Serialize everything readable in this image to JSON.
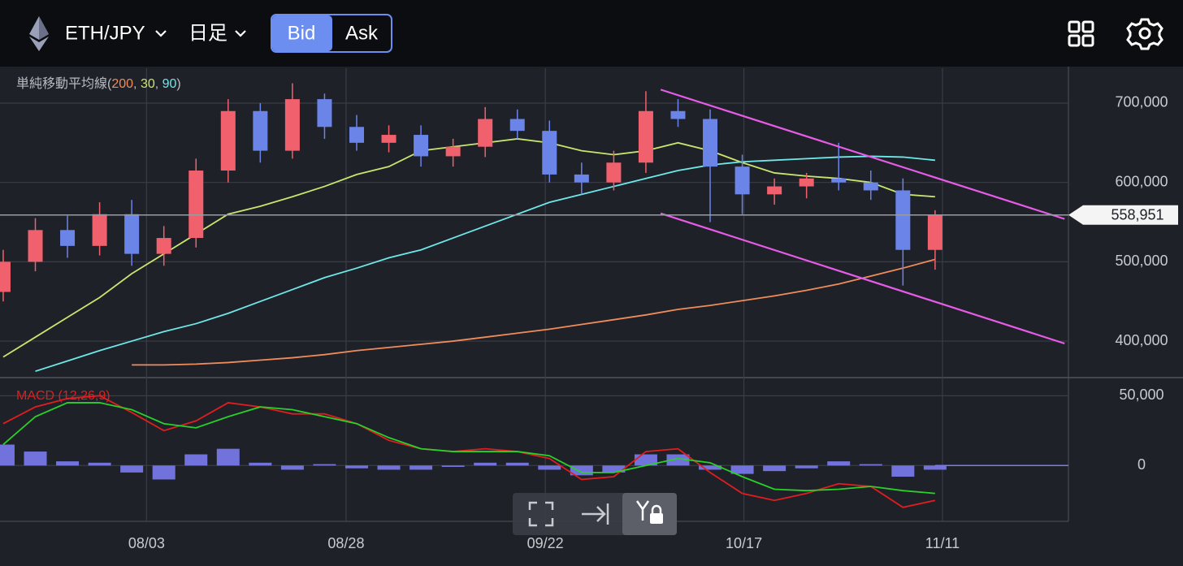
{
  "header": {
    "pair": "ETH/JPY",
    "timeframe": "日足",
    "bid": "Bid",
    "ask": "Ask"
  },
  "chart_data": [
    {
      "type": "candlestick",
      "x": [
        0,
        1,
        2,
        3,
        4,
        5,
        6,
        7,
        8,
        9,
        10,
        11,
        12,
        13,
        14,
        15,
        16,
        17,
        18,
        19,
        20,
        21,
        22,
        23,
        24,
        25,
        26,
        27,
        28,
        29
      ],
      "open": [
        462000,
        500000,
        540000,
        520000,
        560000,
        510000,
        530000,
        615000,
        690000,
        640000,
        705000,
        670000,
        650000,
        660000,
        633000,
        645000,
        680000,
        665000,
        610000,
        600000,
        625000,
        690000,
        680000,
        620000,
        585000,
        595000,
        605000,
        600000,
        590000,
        515000
      ],
      "high": [
        515000,
        555000,
        558000,
        575000,
        578000,
        545000,
        630000,
        705000,
        700000,
        725000,
        712000,
        685000,
        672000,
        672000,
        655000,
        695000,
        692000,
        678000,
        625000,
        640000,
        715000,
        705000,
        692000,
        635000,
        605000,
        612000,
        650000,
        615000,
        605000,
        565000
      ],
      "low": [
        450000,
        488000,
        505000,
        508000,
        495000,
        495000,
        518000,
        600000,
        625000,
        630000,
        655000,
        640000,
        638000,
        620000,
        620000,
        632000,
        655000,
        600000,
        585000,
        590000,
        612000,
        670000,
        550000,
        560000,
        572000,
        580000,
        590000,
        578000,
        470000,
        490000
      ],
      "close": [
        500000,
        540000,
        520000,
        560000,
        510000,
        530000,
        615000,
        690000,
        640000,
        705000,
        670000,
        650000,
        660000,
        633000,
        645000,
        680000,
        665000,
        610000,
        600000,
        625000,
        690000,
        680000,
        620000,
        585000,
        595000,
        605000,
        600000,
        590000,
        515000,
        558951
      ],
      "up_color": "#f0616d",
      "down_color": "#6b84e8",
      "ma_legend": {
        "name": "単純移動平均線",
        "open": "(",
        "sep": ", ",
        "close": ")"
      },
      "series": [
        {
          "name": "200",
          "color": "#f08c5a",
          "values": [
            null,
            null,
            null,
            null,
            370000,
            370000,
            371000,
            373000,
            376000,
            379000,
            383000,
            388000,
            392000,
            396000,
            400000,
            405000,
            410000,
            415000,
            421000,
            427000,
            433000,
            440000,
            445000,
            451000,
            457000,
            464000,
            472000,
            482000,
            492000,
            503000
          ]
        },
        {
          "name": "30",
          "color": "#c8e66e",
          "values": [
            380000,
            405000,
            430000,
            455000,
            485000,
            510000,
            535000,
            560000,
            570000,
            582000,
            595000,
            610000,
            620000,
            640000,
            645000,
            650000,
            655000,
            650000,
            640000,
            635000,
            640000,
            650000,
            640000,
            625000,
            612000,
            608000,
            605000,
            600000,
            585000,
            582000
          ]
        },
        {
          "name": "90",
          "color": "#6ee8e8",
          "values": [
            null,
            362000,
            375000,
            388000,
            400000,
            412000,
            422000,
            435000,
            450000,
            465000,
            480000,
            492000,
            505000,
            515000,
            530000,
            545000,
            560000,
            575000,
            585000,
            595000,
            605000,
            615000,
            622000,
            626000,
            628000,
            630000,
            632000,
            633000,
            632000,
            628000
          ]
        }
      ],
      "trendlines": [
        {
          "color": "#e65ce6",
          "x": [
            20.46,
            33.03
          ],
          "values": [
            717000,
            554000
          ]
        },
        {
          "color": "#e65ce6",
          "x": [
            20.46,
            33.03
          ],
          "values": [
            561000,
            397000
          ]
        }
      ],
      "last_price": {
        "value": 558951,
        "label": "558,951"
      },
      "xlim": [
        -0.1,
        33.15
      ],
      "xticks": [
        {
          "value": 4.46,
          "label": "08/03"
        },
        {
          "value": 10.67,
          "label": "08/28"
        },
        {
          "value": 16.87,
          "label": "09/22"
        },
        {
          "value": 23.05,
          "label": "10/17"
        },
        {
          "value": 29.23,
          "label": "11/11"
        }
      ],
      "ylim": [
        354000,
        744000
      ],
      "yticks": [
        {
          "value": 400000,
          "label": "400,000"
        },
        {
          "value": 500000,
          "label": "500,000"
        },
        {
          "value": 600000,
          "label": "600,000"
        },
        {
          "value": 700000,
          "label": "700,000"
        }
      ],
      "grid": true
    },
    {
      "type": "macd",
      "title": "MACD (12,26,9)",
      "x": [
        0,
        1,
        2,
        3,
        4,
        5,
        6,
        7,
        8,
        9,
        10,
        11,
        12,
        13,
        14,
        15,
        16,
        17,
        18,
        19,
        20,
        21,
        22,
        23,
        24,
        25,
        26,
        27,
        28,
        29
      ],
      "histogram": {
        "color": "#7b7bef",
        "values": [
          15000,
          10000,
          3000,
          2000,
          -5000,
          -10000,
          8000,
          12000,
          2000,
          -3000,
          1000,
          -2000,
          -3000,
          -3000,
          -1000,
          2000,
          2000,
          -3000,
          -7000,
          -5000,
          8000,
          8000,
          -3000,
          -6000,
          -4000,
          -2000,
          3000,
          1000,
          -8000,
          -3000
        ]
      },
      "series": [
        {
          "color": "#e01e1e",
          "values": [
            30000,
            42000,
            48000,
            50000,
            38000,
            25000,
            32000,
            45000,
            42000,
            37000,
            37000,
            30000,
            18000,
            12000,
            10000,
            12000,
            10000,
            5000,
            -10000,
            -8000,
            10000,
            12000,
            -5000,
            -20000,
            -25000,
            -20000,
            -13000,
            -15000,
            -30000,
            -25000
          ]
        },
        {
          "color": "#2ad02a",
          "values": [
            15000,
            35000,
            45000,
            45000,
            40000,
            30000,
            27000,
            35000,
            42000,
            40000,
            35000,
            30000,
            20000,
            12000,
            10000,
            10000,
            10000,
            7000,
            -5000,
            -5000,
            0,
            5000,
            2000,
            -8000,
            -17000,
            -18000,
            -17000,
            -15000,
            -18000,
            -20000
          ]
        }
      ],
      "xlim": [
        -0.1,
        33.15
      ],
      "ylim": [
        -40000,
        63000
      ],
      "yticks": [
        0,
        {
          "value": 50000,
          "label": "50,000"
        }
      ],
      "grid": true
    }
  ]
}
